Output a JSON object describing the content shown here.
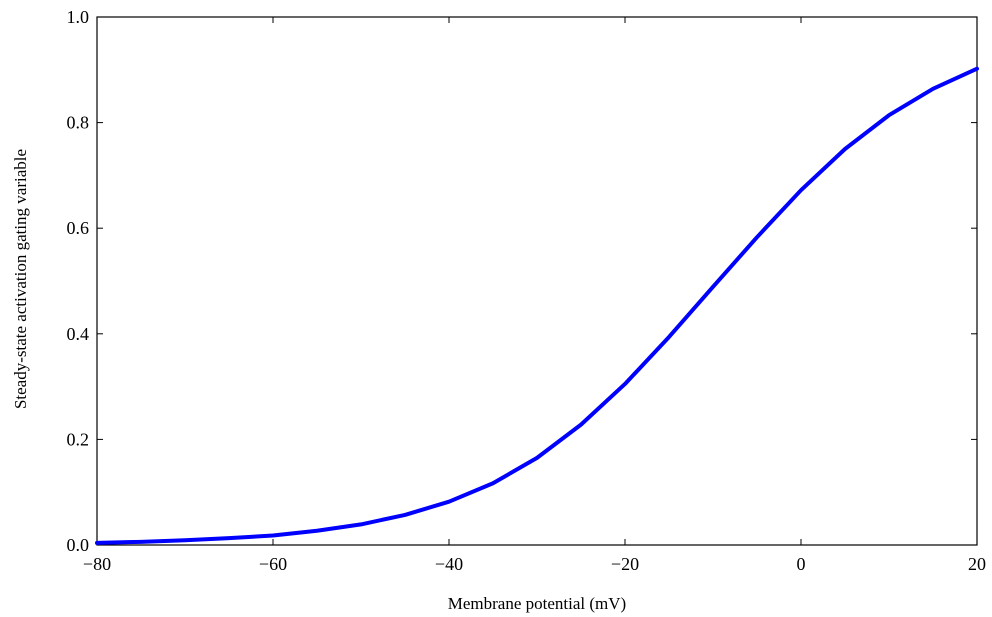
{
  "chart_data": {
    "type": "line",
    "title": "",
    "xlabel": "Membrane potential (mV)",
    "ylabel": "Steady-state activation gating variable",
    "xlim": [
      -80,
      20
    ],
    "ylim": [
      0.0,
      1.0
    ],
    "x_ticks": [
      -80,
      -60,
      -40,
      -20,
      0,
      20
    ],
    "x_tick_labels": [
      "−80",
      "−60",
      "−40",
      "−20",
      "0",
      "20"
    ],
    "y_ticks": [
      0.0,
      0.2,
      0.4,
      0.6,
      0.8,
      1.0
    ],
    "y_tick_labels": [
      "0.0",
      "0.2",
      "0.4",
      "0.6",
      "0.8",
      "1.0"
    ],
    "grid": false,
    "legend": "none",
    "series": [
      {
        "color": "#0000ff",
        "x": [
          -80,
          -75,
          -70,
          -65,
          -60,
          -55,
          -50,
          -45,
          -40,
          -35,
          -30,
          -25,
          -20,
          -15,
          -10,
          -5,
          0,
          5,
          10,
          15,
          20
        ],
        "y": [
          0.004,
          0.006,
          0.009,
          0.013,
          0.018,
          0.027,
          0.039,
          0.057,
          0.082,
          0.117,
          0.165,
          0.228,
          0.305,
          0.394,
          0.489,
          0.583,
          0.672,
          0.75,
          0.814,
          0.864,
          0.902
        ]
      }
    ]
  }
}
